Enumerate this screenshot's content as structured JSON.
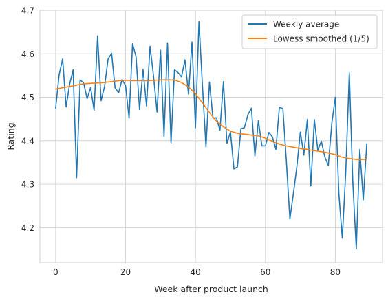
{
  "chart_data": {
    "type": "line",
    "xlabel": "Week after product launch",
    "ylabel": "Rating",
    "xlim": [
      -4.5,
      93.5
    ],
    "ylim": [
      4.12,
      4.7
    ],
    "x_ticks": [
      0,
      20,
      40,
      60,
      80
    ],
    "y_ticks": [
      4.2,
      4.3,
      4.4,
      4.5,
      4.6,
      4.7
    ],
    "x_tick_labels": [
      "0",
      "20",
      "40",
      "60",
      "80"
    ],
    "y_tick_labels": [
      "4.2",
      "4.3",
      "4.4",
      "4.5",
      "4.6",
      "4.7"
    ],
    "grid": true,
    "legend_position": "top-right",
    "series": [
      {
        "name": "Weekly average",
        "color": "#1f77b4",
        "x": [
          0,
          1,
          2,
          3,
          4,
          5,
          6,
          7,
          8,
          9,
          10,
          11,
          12,
          13,
          14,
          15,
          16,
          17,
          18,
          19,
          20,
          21,
          22,
          23,
          24,
          25,
          26,
          27,
          28,
          29,
          30,
          31,
          32,
          33,
          34,
          35,
          36,
          37,
          38,
          39,
          40,
          41,
          42,
          43,
          44,
          45,
          46,
          47,
          48,
          49,
          50,
          51,
          52,
          53,
          54,
          55,
          56,
          57,
          58,
          59,
          60,
          61,
          62,
          63,
          64,
          65,
          66,
          67,
          68,
          69,
          70,
          71,
          72,
          73,
          74,
          75,
          76,
          77,
          78,
          79,
          80,
          81,
          82,
          83,
          84,
          85,
          86,
          87,
          88,
          89
        ],
        "y": [
          4.475,
          4.552,
          4.588,
          4.478,
          4.53,
          4.563,
          4.315,
          4.54,
          4.533,
          4.497,
          4.522,
          4.47,
          4.641,
          4.492,
          4.525,
          4.588,
          4.601,
          4.522,
          4.51,
          4.541,
          4.527,
          4.452,
          4.623,
          4.593,
          4.472,
          4.564,
          4.48,
          4.617,
          4.549,
          4.466,
          4.608,
          4.41,
          4.625,
          4.395,
          4.563,
          4.557,
          4.547,
          4.586,
          4.507,
          4.627,
          4.43,
          4.674,
          4.526,
          4.386,
          4.535,
          4.452,
          4.453,
          4.424,
          4.536,
          4.394,
          4.42,
          4.335,
          4.34,
          4.428,
          4.43,
          4.46,
          4.475,
          4.365,
          4.446,
          4.388,
          4.388,
          4.419,
          4.409,
          4.38,
          4.477,
          4.474,
          4.353,
          4.22,
          4.278,
          4.34,
          4.42,
          4.367,
          4.449,
          4.296,
          4.449,
          4.378,
          4.399,
          4.363,
          4.343,
          4.44,
          4.5,
          4.28,
          4.176,
          4.33,
          4.556,
          4.305,
          4.151,
          4.38,
          4.264,
          4.393
        ]
      },
      {
        "name": "Lowess smoothed (1/5)",
        "color": "#ff7f0e",
        "x": [
          0,
          2,
          4,
          6,
          8,
          10,
          12,
          14,
          16,
          18,
          20,
          22,
          24,
          26,
          28,
          30,
          32,
          34,
          36,
          38,
          40,
          42,
          44,
          46,
          48,
          50,
          52,
          54,
          56,
          58,
          60,
          62,
          64,
          66,
          68,
          70,
          72,
          74,
          76,
          78,
          80,
          82,
          84,
          86,
          88,
          89
        ],
        "y": [
          4.519,
          4.522,
          4.525,
          4.528,
          4.531,
          4.532,
          4.533,
          4.534,
          4.536,
          4.538,
          4.539,
          4.538,
          4.538,
          4.538,
          4.539,
          4.54,
          4.54,
          4.54,
          4.534,
          4.524,
          4.508,
          4.487,
          4.465,
          4.445,
          4.432,
          4.422,
          4.417,
          4.415,
          4.413,
          4.411,
          4.406,
          4.399,
          4.392,
          4.388,
          4.385,
          4.382,
          4.38,
          4.377,
          4.375,
          4.372,
          4.368,
          4.362,
          4.359,
          4.357,
          4.357,
          4.358
        ]
      }
    ]
  }
}
